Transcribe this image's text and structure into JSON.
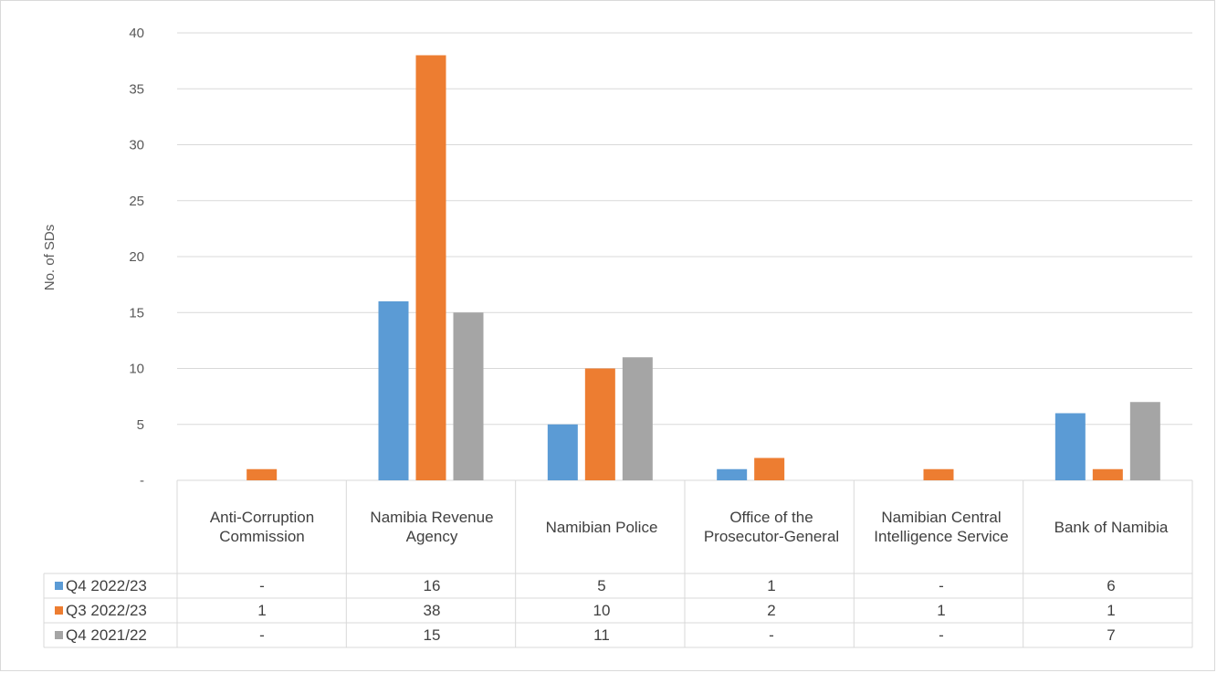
{
  "chart_data": {
    "type": "bar",
    "ylabel": "No. of SDs",
    "ylim": [
      0,
      40
    ],
    "y_ticks": [
      "-",
      "5",
      "10",
      "15",
      "20",
      "25",
      "30",
      "35",
      "40"
    ],
    "grid": true,
    "categories": [
      "Anti-Corruption Commission",
      "Namibia Revenue Agency",
      "Namibian Police",
      "Office of the Prosecutor-General",
      "Namibian Central Intelligence Service",
      "Bank of Namibia"
    ],
    "series": [
      {
        "name": "Q4 2022/23",
        "color": "#5b9bd5",
        "values": [
          0,
          16,
          5,
          1,
          0,
          6
        ],
        "labels": [
          "-",
          "16",
          "5",
          "1",
          "-",
          "6"
        ]
      },
      {
        "name": "Q3 2022/23",
        "color": "#ed7d31",
        "values": [
          1,
          38,
          10,
          2,
          1,
          1
        ],
        "labels": [
          "1",
          "38",
          "10",
          "2",
          "1",
          "1"
        ]
      },
      {
        "name": "Q4 2021/22",
        "color": "#a5a5a5",
        "values": [
          0,
          15,
          11,
          0,
          0,
          7
        ],
        "labels": [
          "-",
          "15",
          "11",
          "-",
          "-",
          "7"
        ]
      }
    ],
    "legend": "data-table"
  }
}
